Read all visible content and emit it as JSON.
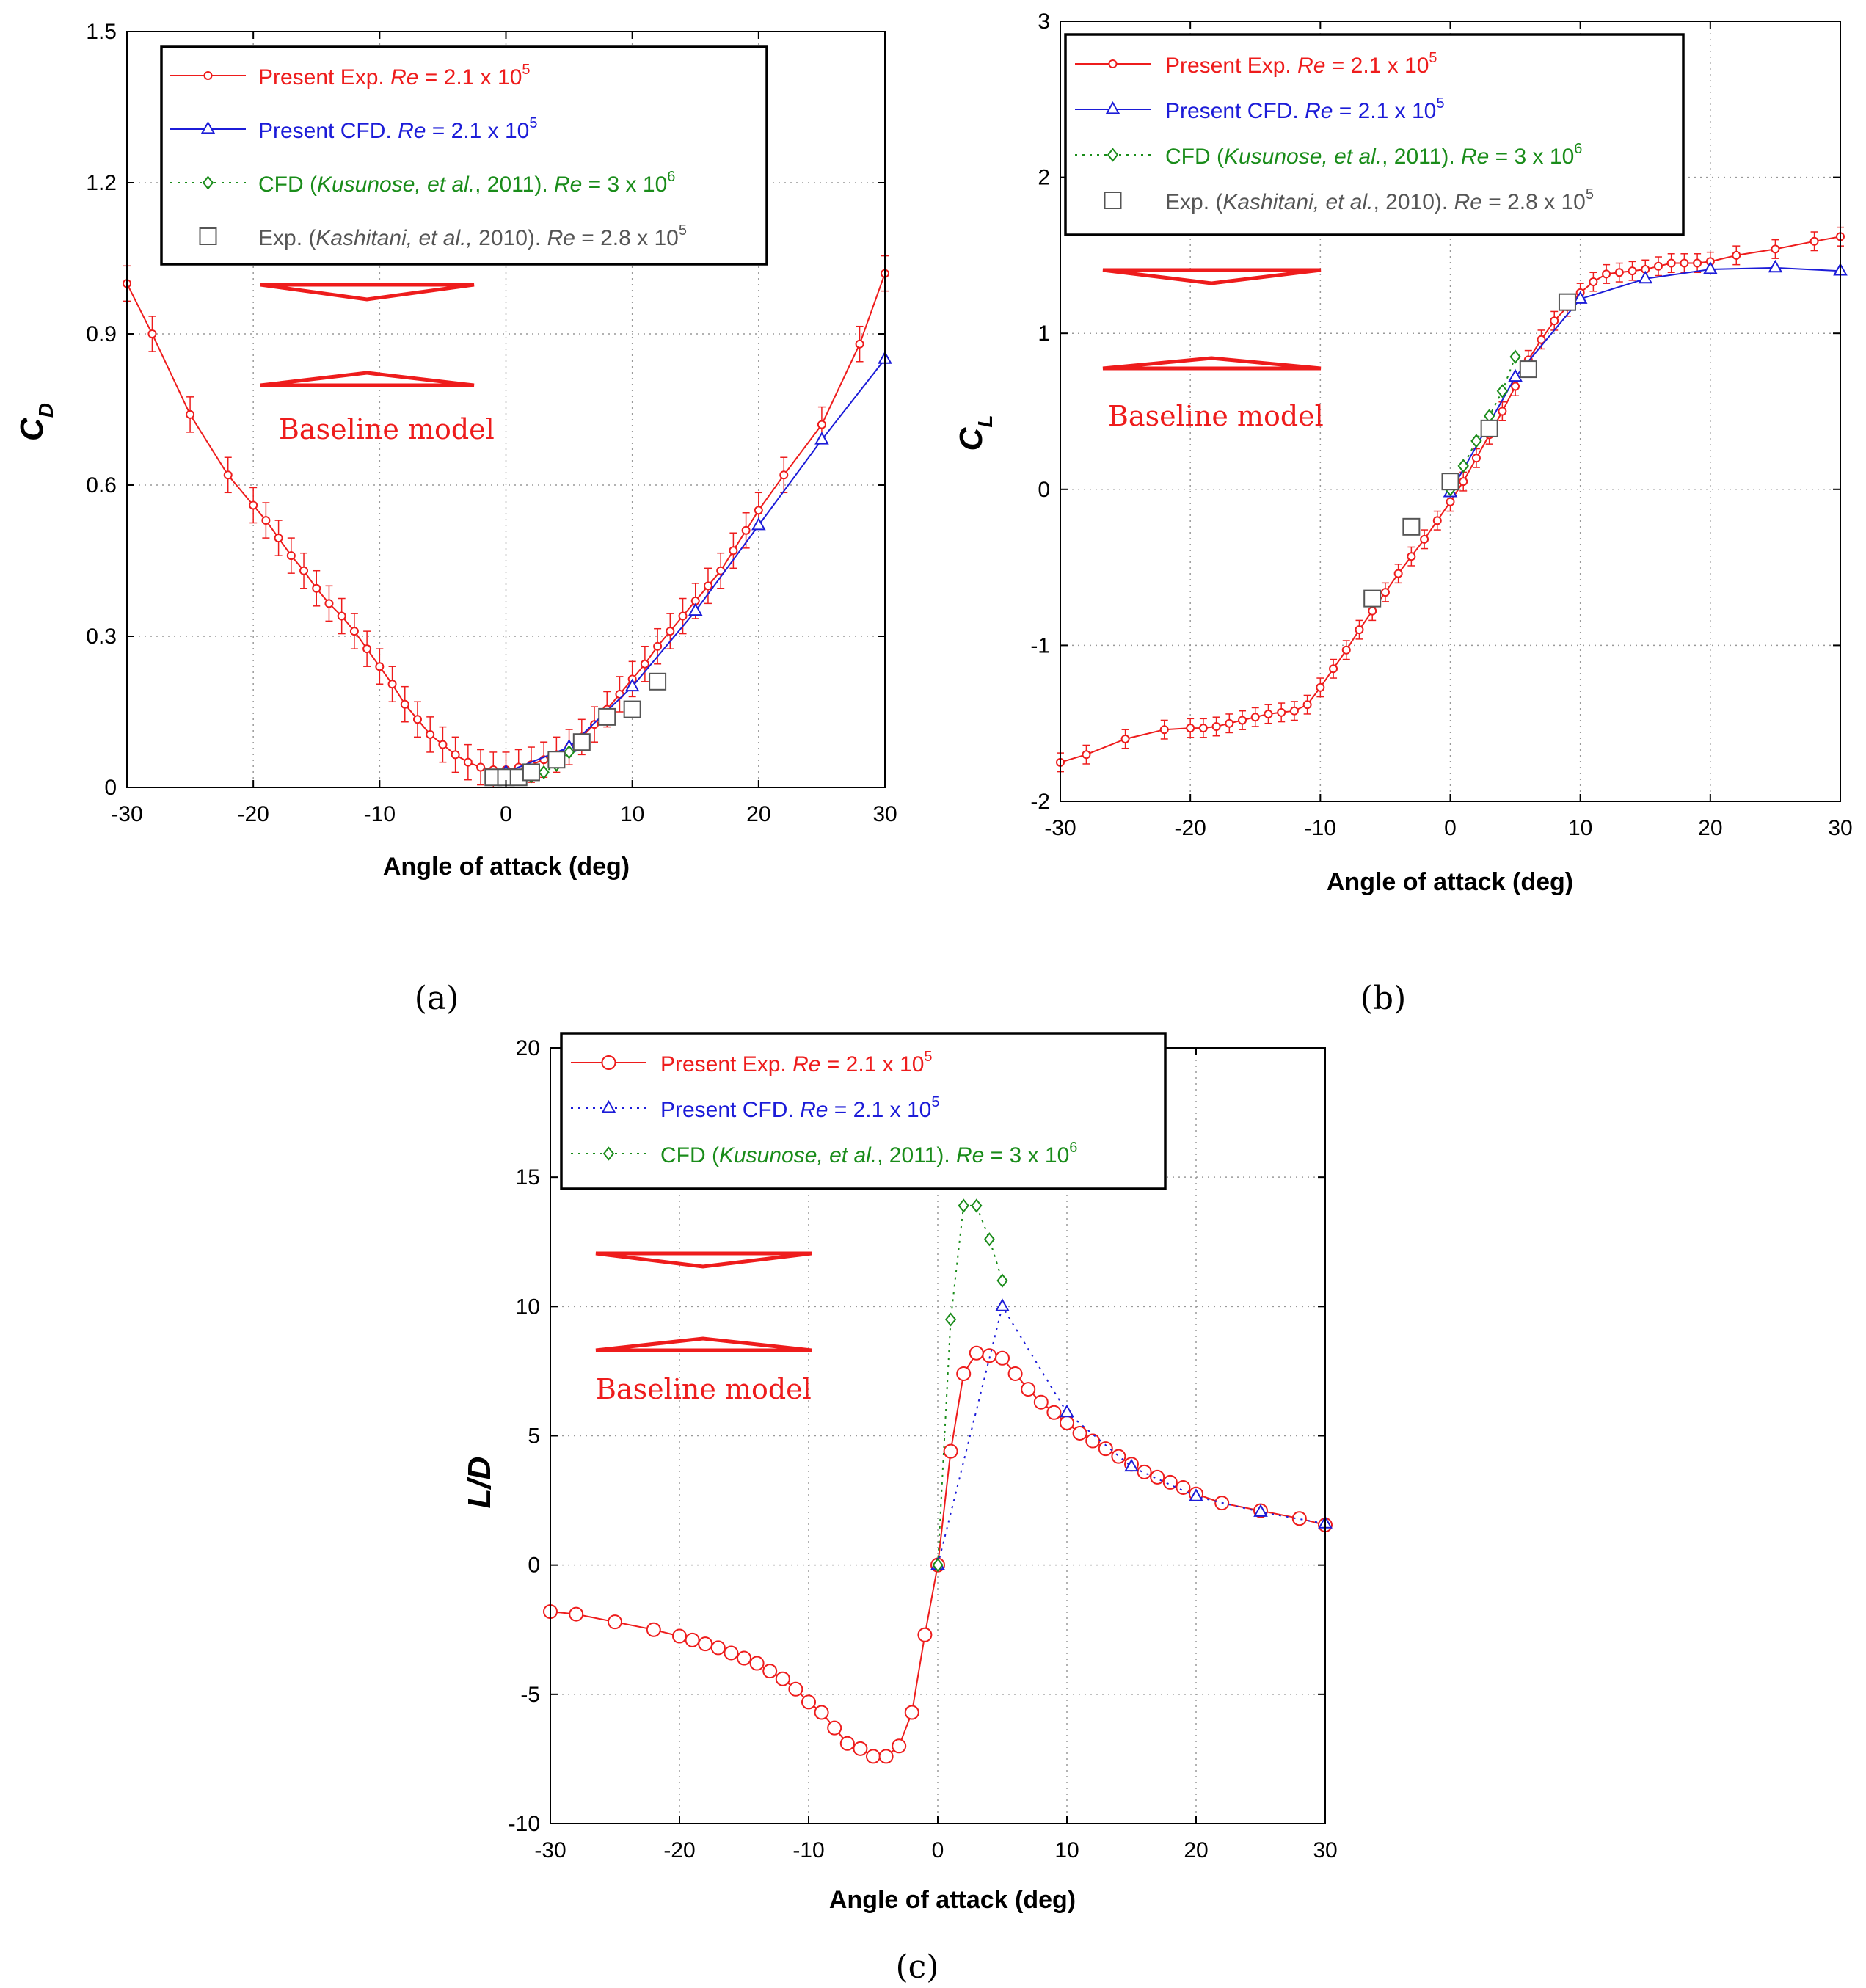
{
  "figure": {
    "captions": [
      "(a)",
      "(b)",
      "(c)"
    ],
    "baseline_label": "Baseline model",
    "colors": {
      "exp": "#ee1c1c",
      "cfd": "#1c1cd8",
      "kus": "#1a8c1a",
      "kash": "#555555"
    }
  },
  "chart_data": [
    {
      "id": "a",
      "type": "line",
      "xlabel": "Angle of attack (deg)",
      "ylabel": "C",
      "ylabel_sub": "D",
      "xlim": [
        -30,
        30
      ],
      "ylim": [
        0,
        1.5
      ],
      "xticks": [
        -30,
        -20,
        -10,
        0,
        10,
        20,
        30
      ],
      "yticks": [
        0,
        0.3,
        0.6,
        0.9,
        1.2,
        1.5
      ],
      "ytick_labels": [
        "0",
        "0.3",
        "0.6",
        "0.9",
        "1.2",
        "1.5"
      ],
      "grid": true,
      "legend": [
        {
          "label": "Present Exp. ",
          "re": "Re",
          "tail": " = 2.1 x 10",
          "exp": "5"
        },
        {
          "label": "Present CFD. ",
          "re": "Re",
          "tail": " = 2.1 x 10",
          "exp": "5"
        },
        {
          "label": "CFD (",
          "it": "Kusunose, et al.",
          "mid": ", 2011). ",
          "re": "Re",
          "tail": " = 3 x 10",
          "exp": "6"
        },
        {
          "label": "Exp. (",
          "it": "Kashitani, et al.,",
          "mid": " 2010). ",
          "re": "Re",
          "tail": " = 2.8 x 10",
          "exp": "5"
        }
      ],
      "series": [
        {
          "name": "Present Exp.",
          "style": "exp",
          "errorbars": true,
          "x": [
            -30,
            -28,
            -25,
            -22,
            -20,
            -19,
            -18,
            -17,
            -16,
            -15,
            -14,
            -13,
            -12,
            -11,
            -10,
            -9,
            -8,
            -7,
            -6,
            -5,
            -4,
            -3,
            -2,
            -1,
            0,
            1,
            2,
            3,
            4,
            5,
            6,
            7,
            8,
            9,
            10,
            11,
            12,
            13,
            14,
            15,
            16,
            17,
            18,
            19,
            20,
            22,
            25,
            28,
            30
          ],
          "y": [
            1.0,
            0.9,
            0.74,
            0.62,
            0.56,
            0.53,
            0.495,
            0.46,
            0.43,
            0.395,
            0.365,
            0.34,
            0.31,
            0.275,
            0.24,
            0.205,
            0.165,
            0.135,
            0.105,
            0.085,
            0.065,
            0.05,
            0.04,
            0.035,
            0.035,
            0.04,
            0.045,
            0.055,
            0.065,
            0.08,
            0.1,
            0.125,
            0.155,
            0.185,
            0.215,
            0.245,
            0.28,
            0.31,
            0.34,
            0.37,
            0.4,
            0.43,
            0.47,
            0.51,
            0.55,
            0.62,
            0.72,
            0.88,
            1.02
          ],
          "err": 0.035
        },
        {
          "name": "Present CFD.",
          "style": "cfd",
          "x": [
            0,
            5,
            10,
            15,
            20,
            25,
            30
          ],
          "y": [
            0.03,
            0.08,
            0.2,
            0.35,
            0.52,
            0.69,
            0.85
          ]
        },
        {
          "name": "CFD (Kusunose)",
          "style": "kus",
          "x": [
            0,
            1,
            2,
            3,
            4,
            5
          ],
          "y": [
            0.015,
            0.018,
            0.022,
            0.03,
            0.045,
            0.07
          ]
        },
        {
          "name": "Exp. (Kashitani)",
          "style": "kash",
          "x": [
            -1,
            0,
            1,
            2,
            4,
            6,
            8,
            10,
            12
          ],
          "y": [
            0.02,
            0.02,
            0.02,
            0.03,
            0.055,
            0.09,
            0.14,
            0.155,
            0.21
          ]
        }
      ]
    },
    {
      "id": "b",
      "type": "line",
      "xlabel": "Angle of attack (deg)",
      "ylabel": "C",
      "ylabel_sub": "L",
      "xlim": [
        -30,
        30
      ],
      "ylim": [
        -2,
        3
      ],
      "xticks": [
        -30,
        -20,
        -10,
        0,
        10,
        20,
        30
      ],
      "yticks": [
        -2,
        -1,
        0,
        1,
        2,
        3
      ],
      "ytick_labels": [
        "-2",
        "-1",
        "0",
        "1",
        "2",
        "3"
      ],
      "grid": true,
      "legend": [
        {
          "label": "Present Exp. ",
          "re": "Re",
          "tail": " = 2.1 x 10",
          "exp": "5"
        },
        {
          "label": "Present CFD. ",
          "re": "Re",
          "tail": " = 2.1 x 10",
          "exp": "5"
        },
        {
          "label": "CFD (",
          "it": "Kusunose, et al.",
          "mid": ", 2011). ",
          "re": "Re",
          "tail": " = 3 x 10",
          "exp": "6"
        },
        {
          "label": "Exp. (",
          "it": "Kashitani, et al.",
          "mid": ", 2010). ",
          "re": "Re",
          "tail": " = 2.8 x 10",
          "exp": "5"
        }
      ],
      "series": [
        {
          "name": "Present Exp.",
          "style": "exp",
          "errorbars": true,
          "x": [
            -30,
            -28,
            -25,
            -22,
            -20,
            -19,
            -18,
            -17,
            -16,
            -15,
            -14,
            -13,
            -12,
            -11,
            -10,
            -9,
            -8,
            -7,
            -6,
            -5,
            -4,
            -3,
            -2,
            -1,
            0,
            1,
            2,
            3,
            4,
            5,
            6,
            7,
            8,
            9,
            10,
            11,
            12,
            13,
            14,
            15,
            16,
            17,
            18,
            19,
            20,
            22,
            25,
            28,
            30
          ],
          "y": [
            -1.75,
            -1.7,
            -1.6,
            -1.54,
            -1.53,
            -1.53,
            -1.52,
            -1.5,
            -1.48,
            -1.46,
            -1.44,
            -1.43,
            -1.42,
            -1.38,
            -1.27,
            -1.15,
            -1.03,
            -0.9,
            -0.78,
            -0.66,
            -0.54,
            -0.43,
            -0.32,
            -0.2,
            -0.08,
            0.05,
            0.2,
            0.35,
            0.5,
            0.66,
            0.83,
            0.96,
            1.08,
            1.17,
            1.26,
            1.33,
            1.38,
            1.39,
            1.4,
            1.41,
            1.43,
            1.45,
            1.45,
            1.45,
            1.46,
            1.5,
            1.54,
            1.59,
            1.62
          ],
          "err": 0.06
        },
        {
          "name": "Present CFD.",
          "style": "cfd",
          "x": [
            0,
            5,
            10,
            15,
            20,
            25,
            30
          ],
          "y": [
            -0.02,
            0.72,
            1.22,
            1.35,
            1.41,
            1.42,
            1.4
          ]
        },
        {
          "name": "CFD (Kusunose)",
          "style": "kus",
          "x": [
            0,
            1,
            2,
            3,
            4,
            5
          ],
          "y": [
            0.0,
            0.15,
            0.31,
            0.47,
            0.63,
            0.85
          ]
        },
        {
          "name": "Exp. (Kashitani)",
          "style": "kash",
          "x": [
            -6,
            -3,
            0,
            3,
            6,
            9
          ],
          "y": [
            -0.7,
            -0.24,
            0.05,
            0.39,
            0.77,
            1.2
          ]
        }
      ]
    },
    {
      "id": "c",
      "type": "line",
      "xlabel": "Angle of attack (deg)",
      "ylabel": "L/D",
      "ylabel_sub": "",
      "xlim": [
        -30,
        30
      ],
      "ylim": [
        -10,
        20
      ],
      "xticks": [
        -30,
        -20,
        -10,
        0,
        10,
        20,
        30
      ],
      "yticks": [
        -10,
        -5,
        0,
        5,
        10,
        15,
        20
      ],
      "ytick_labels": [
        "-10",
        "-5",
        "0",
        "5",
        "10",
        "15",
        "20"
      ],
      "grid": true,
      "legend": [
        {
          "label": "Present Exp. ",
          "re": "Re",
          "tail": " = 2.1 x 10",
          "exp": "5"
        },
        {
          "label": "Present CFD. ",
          "re": "Re",
          "tail": " = 2.1 x 10",
          "exp": "5"
        },
        {
          "label": "CFD (",
          "it": "Kusunose, et al.",
          "mid": ", 2011). ",
          "re": "Re",
          "tail": " = 3 x 10",
          "exp": "6"
        }
      ],
      "series": [
        {
          "name": "Present Exp.",
          "style": "exp_big",
          "x": [
            -30,
            -28,
            -25,
            -22,
            -20,
            -19,
            -18,
            -17,
            -16,
            -15,
            -14,
            -13,
            -12,
            -11,
            -10,
            -9,
            -8,
            -7,
            -6,
            -5,
            -4,
            -3,
            -2,
            -1,
            0,
            1,
            2,
            3,
            4,
            5,
            6,
            7,
            8,
            9,
            10,
            11,
            12,
            13,
            14,
            15,
            16,
            17,
            18,
            19,
            20,
            22,
            25,
            28,
            30
          ],
          "y": [
            -1.8,
            -1.9,
            -2.2,
            -2.5,
            -2.75,
            -2.9,
            -3.05,
            -3.2,
            -3.4,
            -3.6,
            -3.8,
            -4.1,
            -4.4,
            -4.8,
            -5.3,
            -5.7,
            -6.3,
            -6.9,
            -7.1,
            -7.4,
            -7.4,
            -7.0,
            -5.7,
            -2.7,
            0.0,
            4.4,
            7.4,
            8.2,
            8.1,
            8.0,
            7.4,
            6.8,
            6.3,
            5.9,
            5.5,
            5.1,
            4.8,
            4.5,
            4.2,
            3.9,
            3.6,
            3.4,
            3.2,
            3.0,
            2.75,
            2.4,
            2.1,
            1.8,
            1.55
          ]
        },
        {
          "name": "Present CFD.",
          "style": "cfd",
          "x": [
            0,
            5,
            10,
            15,
            20,
            25,
            30
          ],
          "y": [
            0.0,
            10.0,
            5.9,
            3.8,
            2.65,
            2.05,
            1.6
          ]
        },
        {
          "name": "CFD (Kusunose)",
          "style": "kus",
          "x": [
            0,
            1,
            2,
            3,
            4,
            5
          ],
          "y": [
            0.0,
            9.5,
            13.9,
            13.9,
            12.6,
            11.0
          ]
        }
      ]
    }
  ]
}
